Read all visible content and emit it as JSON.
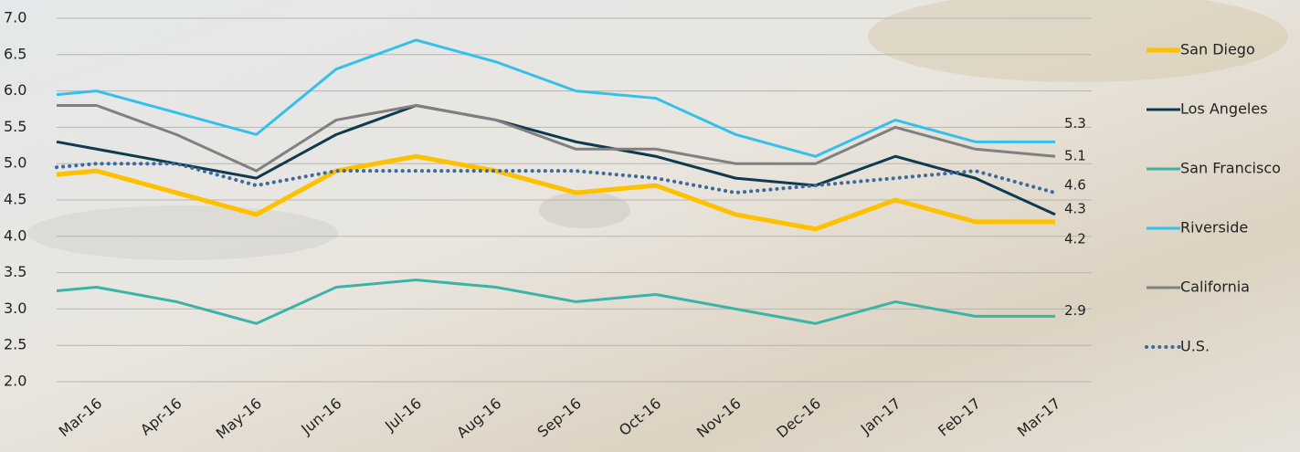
{
  "chart_data": {
    "type": "line",
    "categories": [
      null,
      "Mar-16",
      "Apr-16",
      "May-16",
      "Jun-16",
      "Jul-16",
      "Aug-16",
      "Sep-16",
      "Oct-16",
      "Nov-16",
      "Dec-16",
      "Jan-17",
      "Feb-17",
      "Mar-17"
    ],
    "series": [
      {
        "name": "San Diego",
        "color": "#ffc000",
        "width": 5,
        "dotted": false,
        "values": [
          4.85,
          4.9,
          4.6,
          4.3,
          4.9,
          5.1,
          4.9,
          4.6,
          4.7,
          4.3,
          4.1,
          4.5,
          4.2,
          4.2
        ]
      },
      {
        "name": "Los Angeles",
        "color": "#0e3a4f",
        "width": 3,
        "dotted": false,
        "values": [
          5.3,
          5.2,
          5.0,
          4.8,
          5.4,
          5.8,
          5.6,
          5.3,
          5.1,
          4.8,
          4.7,
          5.1,
          4.8,
          4.3
        ]
      },
      {
        "name": "San Francisco",
        "color": "#3bb3a6",
        "width": 3,
        "dotted": false,
        "values": [
          3.25,
          3.3,
          3.1,
          2.8,
          3.3,
          3.4,
          3.3,
          3.1,
          3.2,
          3.0,
          2.8,
          3.1,
          2.9,
          2.9
        ]
      },
      {
        "name": "Riverside",
        "color": "#35c0eb",
        "width": 3,
        "dotted": false,
        "values": [
          5.95,
          6.0,
          5.7,
          5.4,
          6.3,
          6.7,
          6.4,
          6.0,
          5.9,
          5.4,
          5.1,
          5.6,
          5.3,
          5.3
        ]
      },
      {
        "name": "California",
        "color": "#808080",
        "width": 3,
        "dotted": false,
        "values": [
          5.8,
          5.8,
          5.4,
          4.9,
          5.6,
          5.8,
          5.6,
          5.2,
          5.2,
          5.0,
          5.0,
          5.5,
          5.2,
          5.1
        ]
      },
      {
        "name": "U.S.",
        "color": "#3d6a9a",
        "width": 4,
        "dotted": true,
        "values": [
          4.95,
          5.0,
          5.0,
          4.7,
          4.9,
          4.9,
          4.9,
          4.9,
          4.8,
          4.6,
          4.7,
          4.8,
          4.9,
          4.6
        ]
      }
    ],
    "ylim": [
      2,
      7
    ],
    "yticks": [
      {
        "value": 2,
        "label": "2.0"
      },
      2.5,
      {
        "value": 3,
        "label": "3.0"
      },
      3.5,
      {
        "value": 4,
        "label": "4.0"
      },
      4.5,
      {
        "value": 5,
        "label": "5.0"
      },
      5.5,
      {
        "value": 6,
        "label": "6.0"
      },
      6.5,
      {
        "value": 7,
        "label": "7.0"
      }
    ],
    "grid": true,
    "legend": "right"
  }
}
